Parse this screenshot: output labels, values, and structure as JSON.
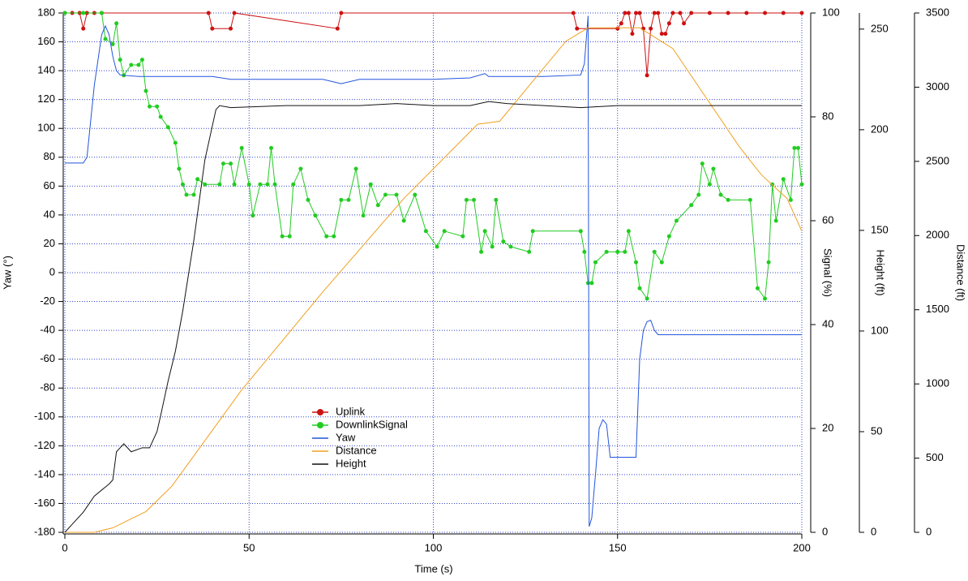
{
  "chart_data": {
    "type": "line",
    "x_label": "Time (s)",
    "y_label": "Yaw (°)",
    "y2_label": "Signal (%)",
    "y3_label": "Height (ft)",
    "y4_label": "Distance (ft)",
    "xlim": [
      0,
      200
    ],
    "xticks": [
      0,
      50,
      100,
      150,
      200
    ],
    "ylim": [
      -180,
      180
    ],
    "yticks": [
      -180,
      -160,
      -140,
      -120,
      -100,
      -80,
      -60,
      -40,
      -20,
      0,
      20,
      40,
      60,
      80,
      100,
      120,
      140,
      160,
      180
    ],
    "y2lim": [
      0,
      100
    ],
    "y2ticks": [
      0,
      20,
      40,
      60,
      80,
      100
    ],
    "y3lim": [
      0,
      258
    ],
    "y3ticks": [
      0,
      50,
      100,
      150,
      200,
      250
    ],
    "y4lim": [
      0,
      3500
    ],
    "y4ticks": [
      0,
      500,
      1000,
      1500,
      2000,
      2500,
      3000,
      3500
    ],
    "grid": true,
    "series": [
      {
        "name": "Uplink",
        "color": "#cc1111",
        "axis": "y2",
        "marker": true,
        "x": [
          0,
          2,
          4,
          5,
          6,
          8,
          10,
          39,
          40,
          45,
          46,
          74,
          75,
          138,
          139,
          150,
          151,
          152,
          153,
          154,
          155,
          156,
          157,
          158,
          159,
          160,
          161,
          162,
          163,
          164,
          165,
          167,
          168,
          170,
          175,
          180,
          185,
          190,
          195,
          200
        ],
        "values": [
          100,
          100,
          100,
          97,
          100,
          100,
          100,
          100,
          97,
          97,
          100,
          97,
          100,
          100,
          97,
          97,
          98,
          100,
          100,
          96,
          100,
          100,
          97,
          88,
          97,
          100,
          100,
          96,
          96,
          98,
          100,
          100,
          98,
          100,
          100,
          100,
          100,
          100,
          100,
          100
        ]
      },
      {
        "name": "DownlinkSignal",
        "color": "#22cc22",
        "axis": "y2",
        "marker": true,
        "x": [
          0,
          5,
          10,
          11,
          13,
          14,
          15,
          16,
          18,
          20,
          21,
          22,
          23,
          25,
          26,
          28,
          30,
          31,
          32,
          33,
          35,
          36,
          38,
          42,
          43,
          45,
          46,
          48,
          50,
          51,
          53,
          55,
          56,
          57,
          59,
          61,
          62,
          64,
          66,
          68,
          71,
          73,
          75,
          77,
          79,
          81,
          83,
          85,
          87,
          90,
          92,
          95,
          98,
          101,
          103,
          108,
          109,
          111,
          113,
          114,
          116,
          117,
          119,
          121,
          126,
          127,
          140,
          141,
          142,
          143,
          144,
          147,
          150,
          152,
          153,
          155,
          156,
          158,
          160,
          162,
          164,
          166,
          170,
          172,
          173,
          175,
          176,
          178,
          180,
          186,
          188,
          190,
          191,
          192,
          193,
          195,
          197,
          198,
          199,
          200
        ],
        "values": [
          100,
          100,
          100,
          95,
          94,
          98,
          91,
          88,
          90,
          90,
          91,
          85,
          82,
          82,
          80,
          78,
          75,
          70,
          67,
          65,
          65,
          68,
          67,
          67,
          71,
          71,
          67,
          74,
          67,
          61,
          67,
          67,
          74,
          67,
          57,
          57,
          67,
          70,
          64,
          61,
          57,
          57,
          64,
          64,
          70,
          61,
          67,
          63,
          65,
          65,
          60,
          65,
          58,
          55,
          58,
          57,
          64,
          64,
          54,
          58,
          55,
          64,
          56,
          55,
          54,
          58,
          58,
          54,
          48,
          48,
          52,
          54,
          54,
          54,
          58,
          52,
          47,
          45,
          54,
          52,
          57,
          60,
          63,
          65,
          71,
          67,
          70,
          65,
          64,
          64,
          47,
          45,
          52,
          67,
          60,
          68,
          64,
          74,
          74,
          67
        ]
      },
      {
        "name": "Yaw",
        "color": "#2255dd",
        "axis": "y",
        "marker": false,
        "x": [
          0,
          5,
          6,
          8,
          10,
          11,
          12,
          13,
          14,
          15,
          20,
          30,
          40,
          45,
          60,
          70,
          75,
          80,
          100,
          110,
          114,
          115,
          130,
          140,
          141,
          142,
          142.3,
          143,
          144,
          145,
          146,
          147,
          148,
          150,
          155,
          156,
          157,
          158,
          159,
          160,
          161,
          170,
          180,
          190,
          200
        ],
        "values": [
          76,
          76,
          80,
          130,
          165,
          171,
          165,
          150,
          140,
          137,
          136,
          136,
          136,
          134,
          134,
          134,
          131,
          134,
          134,
          135,
          138,
          136,
          136,
          137,
          145,
          178,
          -176,
          -170,
          -140,
          -108,
          -102,
          -105,
          -128,
          -128,
          -128,
          -60,
          -40,
          -34,
          -33,
          -40,
          -43,
          -43,
          -43,
          -43,
          -43
        ]
      },
      {
        "name": "Distance",
        "color": "#f0a020",
        "axis": "y4",
        "marker": false,
        "x": [
          0,
          8,
          13,
          22,
          29,
          48,
          70,
          92,
          112,
          118,
          125,
          136,
          142,
          156,
          165,
          174,
          183,
          189,
          196,
          200
        ],
        "values": [
          0,
          0,
          30,
          140,
          310,
          960,
          1620,
          2250,
          2750,
          2770,
          2980,
          3310,
          3400,
          3400,
          3260,
          2930,
          2600,
          2410,
          2250,
          2030
        ]
      },
      {
        "name": "Height",
        "color": "#111111",
        "axis": "y3",
        "marker": false,
        "x": [
          0,
          2,
          5,
          8,
          12,
          13,
          14,
          15,
          16,
          18,
          21,
          23,
          25,
          26,
          28,
          30,
          32,
          35,
          38,
          41,
          42,
          45,
          60,
          80,
          90,
          100,
          110,
          115,
          120,
          130,
          140,
          150,
          160,
          180,
          200
        ],
        "values": [
          0,
          4,
          10,
          18,
          24,
          26,
          40,
          42,
          44,
          40,
          42,
          42,
          50,
          58,
          75,
          90,
          110,
          145,
          185,
          210,
          212,
          211,
          212,
          212,
          213,
          212,
          212,
          214,
          213,
          212,
          211,
          212,
          212,
          212,
          212
        ]
      }
    ]
  }
}
